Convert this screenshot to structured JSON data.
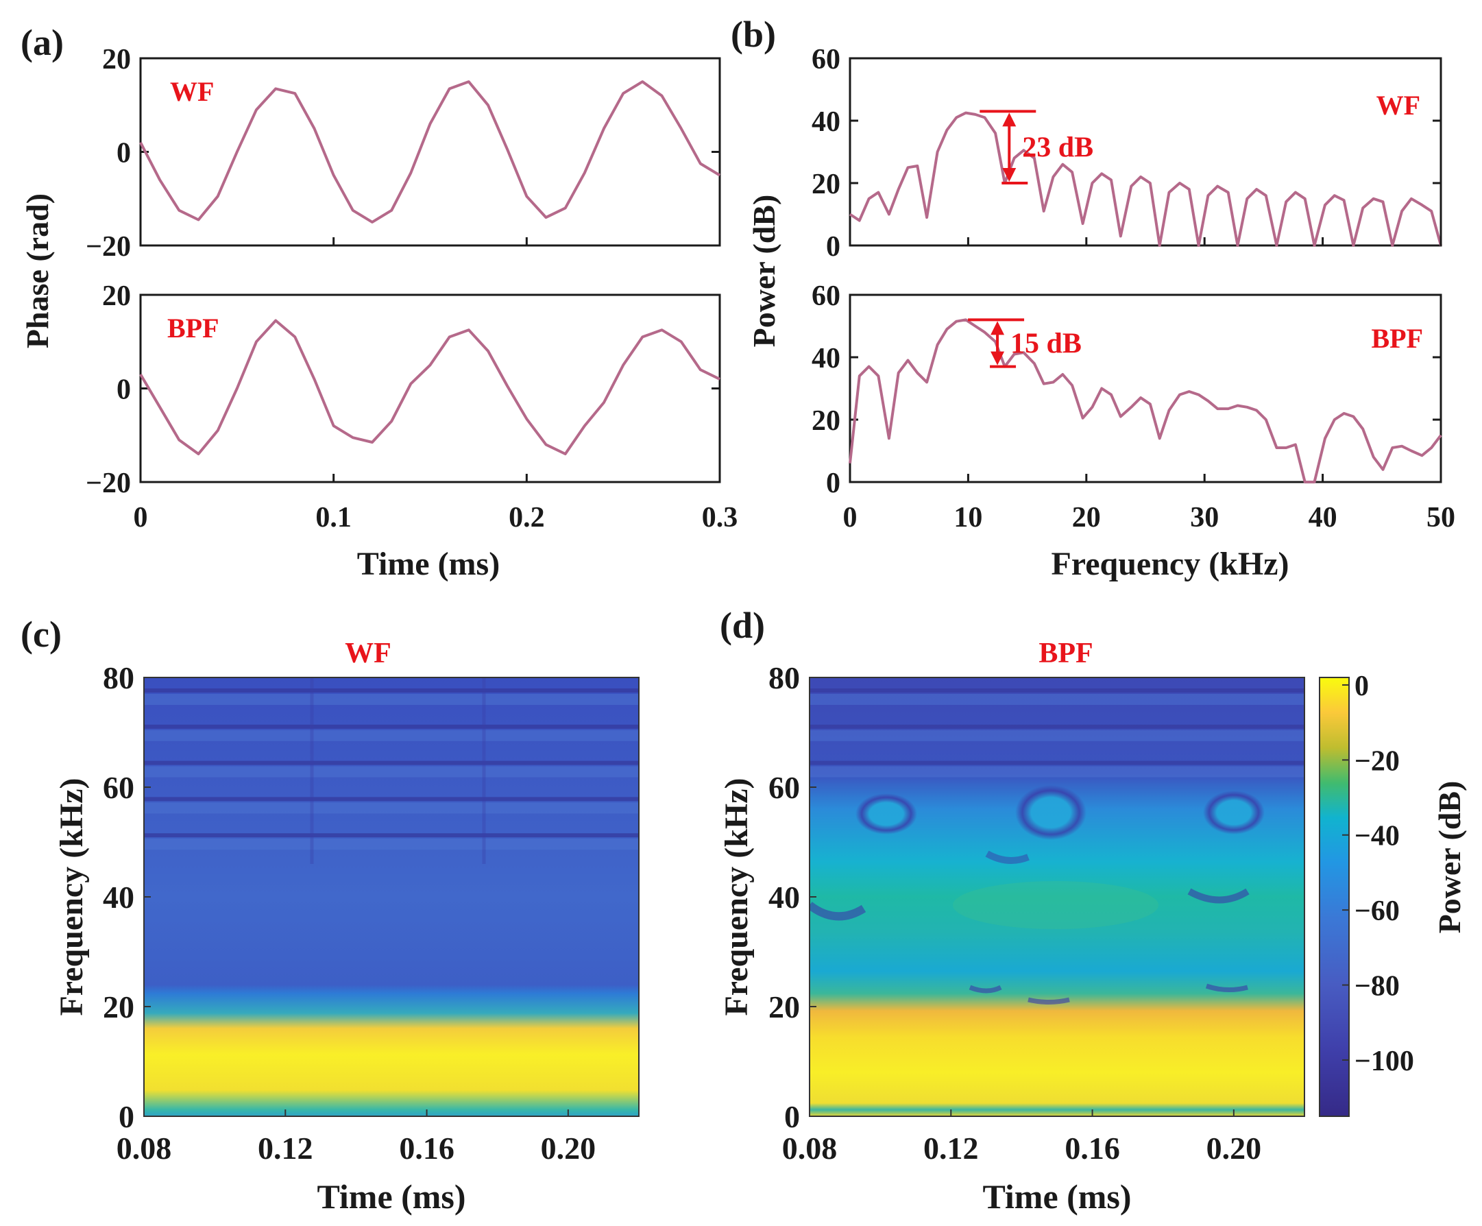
{
  "colors": {
    "line": "#b5698a",
    "annotation": "#e8141b",
    "axis": "#1a1a1a"
  },
  "chart_data": [
    {
      "id": "a",
      "panel_label": "(a)",
      "type": "line",
      "ylabel": "Phase (rad)",
      "xlabel": "Time (ms)",
      "xlim": [
        0,
        0.3
      ],
      "xticks": [
        "0",
        "0.1",
        "0.2",
        "0.3"
      ],
      "subplots": [
        {
          "label": "WF",
          "ylim": [
            -20,
            20
          ],
          "yticks": [
            "20",
            "0",
            "−20"
          ],
          "series": [
            {
              "name": "WF",
              "x": [
                0,
                0.01,
                0.02,
                0.03,
                0.04,
                0.05,
                0.06,
                0.07,
                0.08,
                0.09,
                0.1,
                0.11,
                0.12,
                0.13,
                0.14,
                0.15,
                0.16,
                0.17,
                0.18,
                0.19,
                0.2,
                0.21,
                0.22,
                0.23,
                0.24,
                0.25,
                0.26,
                0.27,
                0.28,
                0.29,
                0.3
              ],
              "values": [
                2,
                -6,
                -12.5,
                -14.5,
                -9.5,
                0,
                9,
                13.5,
                12.5,
                5,
                -5,
                -12.5,
                -15,
                -12.5,
                -4.5,
                6,
                13.5,
                15,
                10,
                0.5,
                -9.5,
                -14,
                -12,
                -4.5,
                5,
                12.5,
                15,
                12,
                5,
                -2.5,
                -5
              ]
            }
          ]
        },
        {
          "label": "BPF",
          "ylim": [
            -20,
            20
          ],
          "yticks": [
            "20",
            "0",
            "−20"
          ],
          "series": [
            {
              "name": "BPF",
              "x": [
                0,
                0.01,
                0.02,
                0.03,
                0.04,
                0.05,
                0.06,
                0.07,
                0.08,
                0.09,
                0.1,
                0.11,
                0.12,
                0.13,
                0.14,
                0.15,
                0.16,
                0.17,
                0.18,
                0.19,
                0.2,
                0.21,
                0.22,
                0.23,
                0.24,
                0.25,
                0.26,
                0.27,
                0.28,
                0.29,
                0.3
              ],
              "values": [
                3,
                -4,
                -11,
                -14,
                -9,
                0,
                10,
                14.5,
                11,
                2,
                -8,
                -10.5,
                -11.5,
                -7,
                1,
                5,
                11,
                12.5,
                8,
                0.5,
                -6.5,
                -12,
                -14,
                -8,
                -3,
                5,
                11,
                12.5,
                10,
                4,
                2
              ]
            }
          ]
        }
      ]
    },
    {
      "id": "b",
      "panel_label": "(b)",
      "type": "line",
      "ylabel": "Power (dB)",
      "xlabel": "Frequency (kHz)",
      "xlim": [
        0,
        50
      ],
      "xticks": [
        "0",
        "10",
        "20",
        "30",
        "40",
        "50"
      ],
      "subplots": [
        {
          "label": "WF",
          "ylim": [
            0,
            60
          ],
          "yticks": [
            "60",
            "40",
            "20",
            "0"
          ],
          "annotation": {
            "text": "23 dB",
            "x": 13.3,
            "top": 43,
            "bottom": 20
          },
          "series": [
            {
              "name": "WF",
              "x": [
                0,
                0.8,
                1.6,
                2.4,
                3.3,
                4.1,
                4.9,
                5.7,
                6.5,
                7.4,
                8.2,
                9.0,
                9.8,
                10.6,
                11.4,
                12.3,
                13.1,
                13.9,
                14.7,
                15.6,
                16.4,
                17.2,
                18.0,
                18.8,
                19.7,
                20.5,
                21.3,
                22.1,
                22.9,
                23.8,
                24.6,
                25.4,
                26.2,
                27.0,
                27.9,
                28.7,
                29.5,
                30.3,
                31.1,
                32.0,
                32.8,
                33.6,
                34.4,
                35.2,
                36.1,
                36.9,
                37.7,
                38.5,
                39.3,
                40.2,
                41.0,
                41.8,
                42.6,
                43.4,
                44.3,
                45.1,
                45.9,
                46.7,
                47.5,
                48.4,
                49.2,
                50.0
              ],
              "values": [
                10,
                8,
                15,
                17,
                10,
                18,
                25,
                25.5,
                9,
                30,
                37,
                41,
                42.5,
                42,
                41,
                36,
                20,
                28,
                30.5,
                28,
                11,
                22,
                26,
                23.5,
                7,
                20,
                23,
                21,
                3,
                19,
                22,
                20,
                0,
                17,
                20,
                18,
                0,
                16,
                19,
                17,
                0,
                15,
                18,
                16,
                0,
                14,
                17,
                15,
                0,
                13,
                16,
                14.5,
                0,
                12,
                15,
                14,
                0,
                11,
                15,
                13,
                11,
                0
              ]
            }
          ]
        },
        {
          "label": "BPF",
          "ylim": [
            0,
            60
          ],
          "yticks": [
            "60",
            "40",
            "20",
            "0"
          ],
          "annotation": {
            "text": "15 dB",
            "x": 12.3,
            "top": 52,
            "bottom": 37
          },
          "series": [
            {
              "name": "BPF",
              "x": [
                0,
                0.8,
                1.6,
                2.4,
                3.3,
                4.1,
                4.9,
                5.7,
                6.5,
                7.4,
                8.2,
                9.0,
                9.8,
                10.6,
                11.4,
                12.3,
                13.1,
                13.9,
                14.7,
                15.6,
                16.4,
                17.2,
                18.0,
                18.8,
                19.7,
                20.5,
                21.3,
                22.1,
                22.9,
                23.8,
                24.6,
                25.4,
                26.2,
                27.0,
                27.9,
                28.7,
                29.5,
                30.3,
                31.1,
                32.0,
                32.8,
                33.6,
                34.4,
                35.2,
                36.1,
                36.9,
                37.7,
                38.5,
                39.3,
                40.2,
                41.0,
                41.8,
                42.6,
                43.4,
                44.3,
                45.1,
                45.9,
                46.7,
                47.5,
                48.4,
                49.2,
                50.0
              ],
              "values": [
                6,
                34,
                37,
                34,
                14,
                35,
                39,
                35,
                32,
                44,
                49,
                51.5,
                52,
                50,
                48,
                45,
                37,
                41,
                41.5,
                38,
                31.5,
                32,
                34.5,
                31,
                20.5,
                24,
                30,
                28,
                21,
                24,
                27,
                25,
                14,
                23,
                28,
                29,
                28,
                26,
                23.5,
                23.5,
                24.5,
                24,
                23,
                20,
                11,
                11,
                12,
                0,
                0,
                14,
                20,
                22,
                21,
                17,
                8,
                4,
                11,
                11.5,
                10,
                8.5,
                11,
                15
              ]
            }
          ]
        }
      ]
    },
    {
      "id": "c",
      "panel_label": "(c)",
      "type": "heatmap",
      "title": "WF",
      "ylabel": "Frequency (kHz)",
      "xlabel": "Time (ms)",
      "xlim": [
        0.08,
        0.22
      ],
      "ylim": [
        0,
        80
      ],
      "xticks": [
        "0.08",
        "0.12",
        "0.16",
        "0.20"
      ],
      "yticks": [
        "80",
        "60",
        "40",
        "20",
        "0"
      ],
      "high_band_kHz": [
        3,
        19
      ],
      "stripe_spacing_kHz": 6.6
    },
    {
      "id": "d",
      "panel_label": "(d)",
      "type": "heatmap",
      "title": "BPF",
      "ylabel": "Frequency (kHz)",
      "xlabel": "Time (ms)",
      "xlim": [
        0.08,
        0.22
      ],
      "ylim": [
        0,
        80
      ],
      "xticks": [
        "0.08",
        "0.12",
        "0.16",
        "0.20"
      ],
      "yticks": [
        "80",
        "60",
        "40",
        "20",
        "0"
      ],
      "high_band_kHz": [
        2,
        17
      ],
      "colorbar": {
        "label": "Power (dB)",
        "range": [
          -115,
          2
        ],
        "ticks": [
          "0",
          "−20",
          "−40",
          "−60",
          "−80",
          "−100"
        ],
        "tick_values": [
          0,
          -20,
          -40,
          -60,
          -80,
          -100
        ],
        "colors": [
          "#f9fb0e",
          "#fcc53a",
          "#c7c02e",
          "#3fbb6f",
          "#14b4cd",
          "#1f97e5",
          "#3a77d6",
          "#4a5ac0",
          "#3e37a6",
          "#352a87"
        ]
      }
    }
  ]
}
